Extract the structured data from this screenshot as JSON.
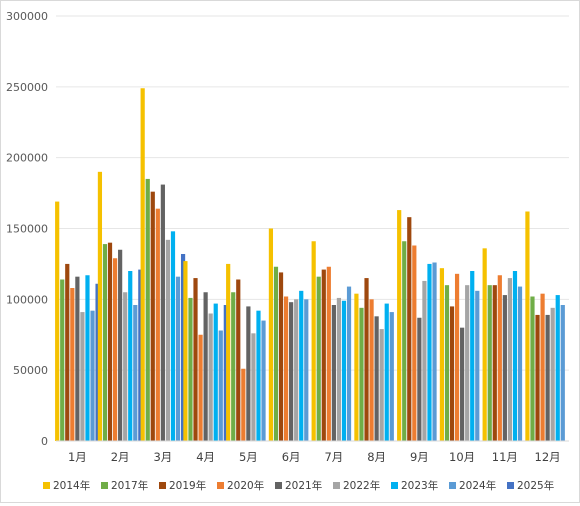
{
  "chart_data": {
    "type": "bar",
    "title": "",
    "xlabel": "",
    "ylabel": "",
    "ylim": [
      0,
      300000
    ],
    "yticks": [
      0,
      50000,
      100000,
      150000,
      200000,
      250000,
      300000
    ],
    "ytick_labels": [
      "0",
      "50000",
      "100000",
      "150000",
      "200000",
      "250000",
      "300000"
    ],
    "grid": true,
    "legend_position": "bottom",
    "categories": [
      "1月",
      "2月",
      "3月",
      "4月",
      "5月",
      "6月",
      "7月",
      "8月",
      "9月",
      "10月",
      "11月",
      "12月"
    ],
    "series": [
      {
        "name": "2014年",
        "color": "#f5c100",
        "values": [
          169000,
          190000,
          249000,
          127000,
          125000,
          150000,
          141000,
          104000,
          163000,
          122000,
          136000,
          162000
        ]
      },
      {
        "name": "2017年",
        "color": "#70ad47",
        "values": [
          114000,
          139000,
          185000,
          101000,
          105000,
          123000,
          116000,
          94000,
          141000,
          110000,
          110000,
          102000
        ]
      },
      {
        "name": "2019年",
        "color": "#9e480e",
        "values": [
          125000,
          140000,
          176000,
          115000,
          114000,
          119000,
          121000,
          115000,
          158000,
          95000,
          110000,
          89000
        ]
      },
      {
        "name": "2020年",
        "color": "#ed7d31",
        "values": [
          108000,
          129000,
          164000,
          75000,
          51000,
          102000,
          123000,
          100000,
          138000,
          118000,
          117000,
          104000
        ]
      },
      {
        "name": "2021年",
        "color": "#636363",
        "values": [
          116000,
          135000,
          181000,
          105000,
          95000,
          98000,
          96000,
          88000,
          87000,
          80000,
          103000,
          89000
        ]
      },
      {
        "name": "2022年",
        "color": "#a5a5a5",
        "values": [
          91000,
          105000,
          142000,
          90000,
          76000,
          100000,
          101000,
          79000,
          113000,
          110000,
          115000,
          94000
        ]
      },
      {
        "name": "2023年",
        "color": "#00b0f0",
        "values": [
          117000,
          120000,
          148000,
          97000,
          92000,
          106000,
          99000,
          97000,
          125000,
          120000,
          120000,
          103000
        ]
      },
      {
        "name": "2024年",
        "color": "#5b9bd5",
        "values": [
          92000,
          96000,
          116000,
          78000,
          85000,
          100000,
          109000,
          91000,
          126000,
          106000,
          109000,
          96000
        ]
      },
      {
        "name": "2025年",
        "color": "#4472c4",
        "values": [
          111000,
          121000,
          132000,
          96000,
          null,
          null,
          null,
          null,
          null,
          null,
          null,
          null
        ]
      }
    ]
  }
}
